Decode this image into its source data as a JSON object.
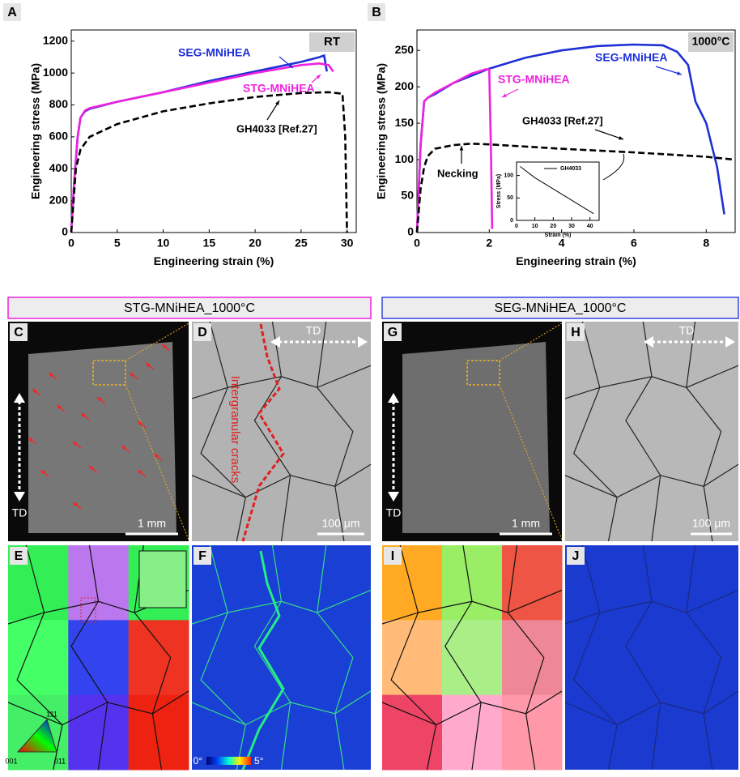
{
  "chart_data": [
    {
      "type": "line",
      "x_label": "Engineering strain (%)",
      "y_label": "Engineering stress (MPa)",
      "xlim": [
        0,
        31
      ],
      "ylim": [
        0,
        1270
      ],
      "xticks": [
        0,
        5,
        10,
        15,
        20,
        25,
        30
      ],
      "yticks": [
        0,
        200,
        400,
        600,
        800,
        1000,
        1200
      ],
      "annotations": [
        "RT"
      ],
      "series": [
        {
          "name": "SEG-MNiHEA",
          "color": "#1f2fd6",
          "style": "solid",
          "x": [
            0,
            0.3,
            0.7,
            1,
            1.5,
            2,
            5,
            10,
            15,
            20,
            25,
            27,
            27.5,
            27.8
          ],
          "values": [
            0,
            300,
            600,
            720,
            760,
            775,
            820,
            880,
            950,
            1010,
            1070,
            1100,
            1110,
            1010
          ]
        },
        {
          "name": "STG-MNiHEA",
          "color": "#ee22dd",
          "style": "solid",
          "x": [
            0,
            0.3,
            0.7,
            1,
            1.5,
            2,
            5,
            10,
            15,
            20,
            25,
            27,
            28,
            28.5
          ],
          "values": [
            0,
            300,
            600,
            720,
            765,
            780,
            820,
            880,
            940,
            1000,
            1050,
            1060,
            1050,
            1010
          ]
        },
        {
          "name": "GH4033 [Ref.27]",
          "color": "#000000",
          "style": "dashed",
          "x": [
            0,
            0.5,
            1,
            2,
            5,
            10,
            15,
            20,
            25,
            28,
            29.5,
            29.8,
            30
          ],
          "values": [
            0,
            400,
            520,
            600,
            680,
            760,
            810,
            850,
            875,
            880,
            870,
            600,
            0
          ]
        }
      ]
    },
    {
      "type": "line",
      "x_label": "Engineering strain (%)",
      "y_label": "Engineering stress (MPa)",
      "xlim": [
        0,
        8.8
      ],
      "ylim": [
        0,
        278
      ],
      "xticks": [
        0,
        2,
        4,
        6,
        8
      ],
      "yticks": [
        0,
        50,
        100,
        150,
        200,
        250
      ],
      "annotations": [
        "1000°C",
        "Necking"
      ],
      "series": [
        {
          "name": "SEG-MNiHEA",
          "color": "#1f2fd6",
          "style": "solid",
          "x": [
            0,
            0.1,
            0.2,
            0.3,
            0.5,
            1,
            2,
            3,
            4,
            5,
            6,
            6.8,
            7.2,
            7.5,
            7.7,
            8,
            8.3,
            8.5
          ],
          "values": [
            0,
            120,
            180,
            185,
            190,
            205,
            225,
            240,
            250,
            256,
            258,
            257,
            248,
            230,
            180,
            150,
            90,
            25
          ]
        },
        {
          "name": "STG-MNiHEA",
          "color": "#ee22dd",
          "style": "solid",
          "x": [
            0,
            0.1,
            0.2,
            0.3,
            0.5,
            1,
            1.5,
            1.9,
            2.0,
            2.05,
            2.08
          ],
          "values": [
            0,
            120,
            180,
            185,
            192,
            205,
            218,
            224,
            224,
            100,
            5
          ]
        },
        {
          "name": "GH4033 [Ref.27]",
          "color": "#000000",
          "style": "dashed",
          "x": [
            0,
            0.1,
            0.2,
            0.3,
            0.5,
            1,
            1.5,
            2,
            4,
            6,
            8,
            8.8
          ],
          "values": [
            0,
            60,
            90,
            105,
            115,
            120,
            122,
            121,
            115,
            110,
            104,
            100
          ]
        }
      ]
    },
    {
      "type": "line",
      "x_label": "Strain (%)",
      "y_label": "Stress (MPa)",
      "xlim": [
        0,
        45
      ],
      "ylim": [
        0,
        130
      ],
      "xticks": [
        0,
        10,
        20,
        30,
        40
      ],
      "yticks": [
        0,
        50,
        100
      ],
      "series": [
        {
          "name": "GH4033",
          "color": "#000000",
          "style": "solid",
          "x": [
            2,
            10,
            20,
            30,
            42
          ],
          "values": [
            120,
            95,
            70,
            45,
            15
          ]
        }
      ]
    }
  ],
  "panels": {
    "letters": [
      "A",
      "B",
      "C",
      "D",
      "E",
      "F",
      "G",
      "H",
      "I",
      "J"
    ],
    "headers": [
      "STG-MNiHEA_1000°C",
      "SEG-MNiHEA_1000°C"
    ],
    "direction": "TD",
    "scale_bars": [
      "1 mm",
      "100 μm"
    ],
    "crack_label": "Intergranular cracks",
    "colorbar": [
      "0°",
      "5°"
    ],
    "ipf_corners": [
      "111",
      "001",
      "011"
    ]
  }
}
